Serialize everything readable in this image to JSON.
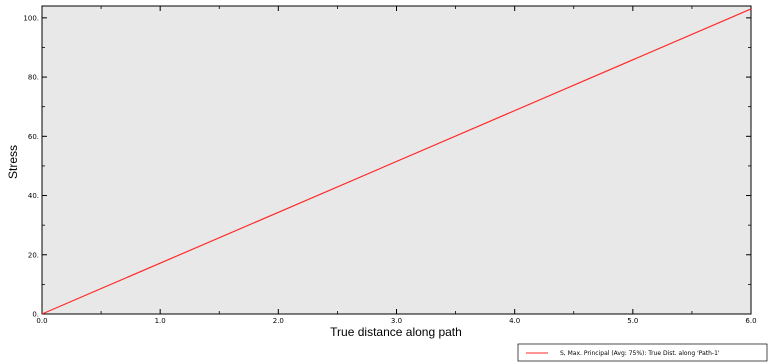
{
  "chart_data": {
    "type": "line",
    "xlabel": "True distance along path",
    "ylabel": "Stress",
    "xlim": [
      0,
      6
    ],
    "ylim": [
      0,
      104
    ],
    "x_ticks": [
      "0.0",
      "1.0",
      "2.0",
      "3.0",
      "4.0",
      "5.0",
      "6.0"
    ],
    "y_ticks": [
      "0.",
      "20.",
      "40.",
      "60.",
      "80.",
      "100."
    ],
    "grid": false,
    "legend_position": "bottom-right",
    "series": [
      {
        "name": "S, Max. Principal (Avg: 75%): True Dist. along 'Path-1'",
        "color": "#ff2a2a",
        "x": [
          0,
          6
        ],
        "y": [
          0,
          103
        ]
      }
    ],
    "plot_background": "#e8e8e8"
  }
}
